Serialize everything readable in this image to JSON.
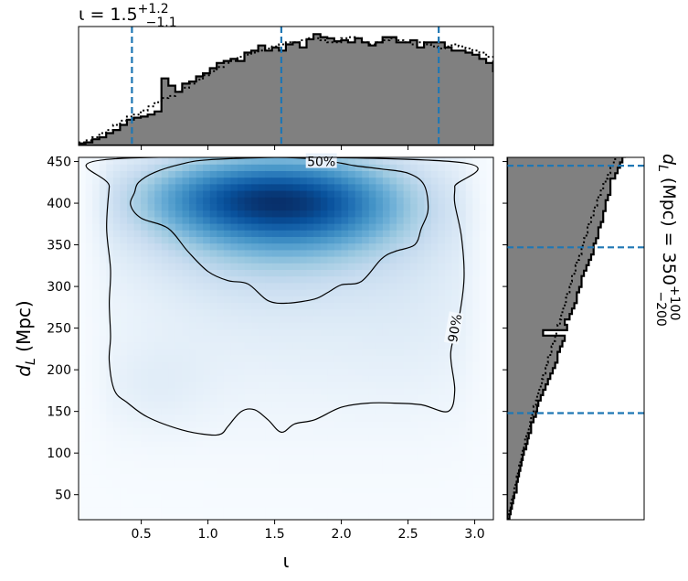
{
  "chart_data": {
    "type": "heatmap",
    "main": {
      "xlabel": "ι",
      "ylabel_main": "d",
      "ylabel_sub": "L",
      "ylabel_unit": " (Mpc)",
      "xlim": [
        0.03,
        3.14
      ],
      "ylim": [
        20,
        455
      ],
      "xticks": [
        0.5,
        1.0,
        1.5,
        2.0,
        2.5,
        3.0
      ],
      "xtick_labels": [
        "0.5",
        "1.0",
        "1.5",
        "2.0",
        "2.5",
        "3.0"
      ],
      "yticks": [
        50,
        100,
        150,
        200,
        250,
        300,
        350,
        400,
        450
      ],
      "ytick_labels": [
        "50",
        "100",
        "150",
        "200",
        "250",
        "300",
        "350",
        "400",
        "450"
      ],
      "density_peaks": [
        {
          "x": 1.8,
          "y": 405,
          "sx": 0.55,
          "sy": 40,
          "w": 1.0
        },
        {
          "x": 1.0,
          "y": 410,
          "sx": 0.5,
          "sy": 35,
          "w": 0.65
        },
        {
          "x": 1.45,
          "y": 370,
          "sx": 0.7,
          "sy": 55,
          "w": 0.5
        },
        {
          "x": 1.6,
          "y": 260,
          "sx": 1.0,
          "sy": 90,
          "w": 0.16
        },
        {
          "x": 0.6,
          "y": 180,
          "sx": 0.3,
          "sy": 40,
          "w": 0.12
        },
        {
          "x": 2.6,
          "y": 300,
          "sx": 0.4,
          "sy": 100,
          "w": 0.1
        }
      ],
      "contours": [
        {
          "label": "50%",
          "label_at": [
            1.85,
            450
          ],
          "points": [
            [
              0.45,
              413
            ],
            [
              0.42,
              398
            ],
            [
              0.5,
              382
            ],
            [
              0.7,
              370
            ],
            [
              0.85,
              342
            ],
            [
              1.0,
              318
            ],
            [
              1.15,
              307
            ],
            [
              1.3,
              303
            ],
            [
              1.45,
              283
            ],
            [
              1.6,
              280
            ],
            [
              1.8,
              285
            ],
            [
              1.9,
              293
            ],
            [
              2.0,
              302
            ],
            [
              2.15,
              306
            ],
            [
              2.3,
              333
            ],
            [
              2.4,
              342
            ],
            [
              2.55,
              350
            ],
            [
              2.6,
              370
            ],
            [
              2.65,
              392
            ],
            [
              2.62,
              422
            ],
            [
              2.5,
              436
            ],
            [
              2.3,
              441
            ],
            [
              2.1,
              445
            ],
            [
              2.0,
              448
            ],
            [
              1.8,
              453
            ],
            [
              1.5,
              455
            ],
            [
              1.0,
              452
            ],
            [
              0.8,
              447
            ],
            [
              0.6,
              437
            ],
            [
              0.48,
              425
            ]
          ]
        },
        {
          "label": "90%",
          "label_at": [
            2.85,
            250
          ],
          "points": [
            [
              0.28,
              453
            ],
            [
              0.26,
              420
            ],
            [
              0.24,
              370
            ],
            [
              0.27,
              320
            ],
            [
              0.26,
              280
            ],
            [
              0.27,
              240
            ],
            [
              0.26,
              210
            ],
            [
              0.3,
              175
            ],
            [
              0.4,
              160
            ],
            [
              0.55,
              143
            ],
            [
              0.8,
              128
            ],
            [
              1.0,
              122
            ],
            [
              1.1,
              123
            ],
            [
              1.15,
              132
            ],
            [
              1.25,
              150
            ],
            [
              1.35,
              152
            ],
            [
              1.45,
              140
            ],
            [
              1.55,
              125
            ],
            [
              1.65,
              135
            ],
            [
              1.8,
              140
            ],
            [
              2.0,
              155
            ],
            [
              2.2,
              160
            ],
            [
              2.4,
              160
            ],
            [
              2.6,
              158
            ],
            [
              2.8,
              150
            ],
            [
              2.85,
              175
            ],
            [
              2.82,
              220
            ],
            [
              2.88,
              260
            ],
            [
              2.92,
              310
            ],
            [
              2.9,
              360
            ],
            [
              2.85,
              400
            ],
            [
              2.85,
              420
            ],
            [
              2.83,
              450
            ]
          ]
        }
      ]
    },
    "top": {
      "title_prefix": "ι = 1.5",
      "title_sup": "+1.2",
      "title_sub": "−1.1",
      "quantile_lines": [
        0.43,
        1.55,
        2.73
      ],
      "bin_edges_start": 0.03,
      "bin_width": 0.0518,
      "histogram": [
        2,
        3,
        6,
        8,
        12,
        15,
        20,
        25,
        27,
        28,
        30,
        33,
        65,
        58,
        52,
        60,
        62,
        67,
        70,
        75,
        80,
        82,
        84,
        82,
        90,
        92,
        97,
        92,
        95,
        92,
        98,
        100,
        95,
        103,
        108,
        105,
        104,
        101,
        102,
        100,
        104,
        100,
        97,
        100,
        105,
        105,
        100,
        100,
        102,
        95,
        100,
        100,
        100,
        95,
        92,
        92,
        90,
        88,
        84,
        80,
        72,
        65,
        58,
        55,
        50,
        42,
        35,
        30,
        28,
        20,
        15,
        10,
        5,
        2,
        1
      ],
      "prior_hist": [
        3,
        5,
        8,
        12,
        15,
        20,
        24,
        28,
        30,
        34,
        38,
        42,
        46,
        48,
        52,
        56,
        60,
        64,
        68,
        72,
        76,
        80,
        82,
        86,
        88,
        90,
        92,
        94,
        96,
        98,
        100,
        100,
        102,
        104,
        104,
        102,
        100,
        100,
        104,
        105,
        104,
        100,
        98,
        100,
        102,
        104,
        102,
        100,
        98,
        100,
        98,
        96,
        94,
        96,
        98,
        96,
        94,
        92,
        90,
        86,
        80,
        74,
        70,
        64,
        58,
        52,
        46,
        40,
        34,
        28,
        22,
        16,
        10,
        6,
        3
      ]
    },
    "right": {
      "title_main": "d",
      "title_sub_L": "L",
      "title_unit": " (Mpc) = 350",
      "title_sup": "+100",
      "title_sub": "−200",
      "quantile_lines": [
        148,
        347,
        445
      ],
      "bin_edges_start": 20,
      "bin_width": 6.5,
      "histogram": [
        2,
        3,
        4,
        5,
        6,
        8,
        8,
        9,
        10,
        11,
        12,
        13,
        14,
        16,
        17,
        18,
        20,
        20,
        22,
        24,
        25,
        26,
        28,
        30,
        32,
        34,
        36,
        38,
        40,
        42,
        42,
        44,
        46,
        48,
        30,
        50,
        48,
        52,
        54,
        56,
        58,
        58,
        60,
        62,
        62,
        64,
        66,
        68,
        70,
        72,
        72,
        74,
        76,
        76,
        78,
        80,
        80,
        82,
        82,
        84,
        86,
        86,
        86,
        90,
        92,
        94,
        96,
        98,
        100,
        102
      ],
      "prior_hist": [
        1,
        2,
        3,
        4,
        5,
        6,
        7,
        8,
        9,
        10,
        11,
        12,
        13,
        14,
        15,
        16,
        18,
        19,
        20,
        21,
        22,
        24,
        25,
        26,
        28,
        29,
        30,
        32,
        33,
        34,
        36,
        37,
        38,
        40,
        41,
        42,
        44,
        45,
        46,
        48,
        49,
        50,
        52,
        53,
        54,
        56,
        57,
        58,
        60,
        62,
        63,
        64,
        66,
        67,
        68,
        70,
        72,
        73,
        75,
        76,
        78,
        80,
        82,
        84,
        86,
        88,
        90,
        92,
        94,
        96
      ]
    }
  }
}
